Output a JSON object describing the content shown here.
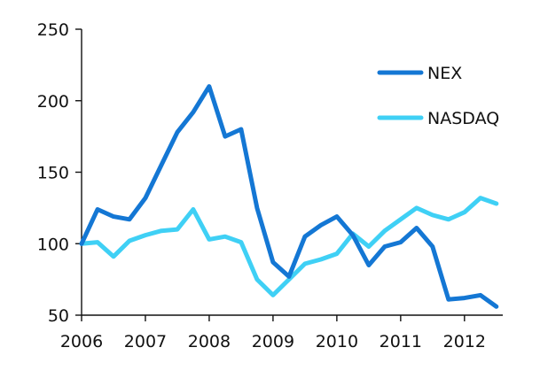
{
  "chart_data": {
    "type": "line",
    "title": "",
    "xlabel": "",
    "ylabel": "",
    "xlim": [
      2006,
      2012.6
    ],
    "ylim": [
      50,
      250
    ],
    "x_ticks": [
      2006,
      2007,
      2008,
      2009,
      2010,
      2011,
      2012
    ],
    "y_ticks": [
      50,
      100,
      150,
      200,
      250
    ],
    "grid": false,
    "legend_position": "top-right",
    "series": [
      {
        "name": "NEX",
        "color": "#1477d4",
        "x": [
          2006.0,
          2006.25,
          2006.5,
          2006.75,
          2007.0,
          2007.25,
          2007.5,
          2007.75,
          2008.0,
          2008.25,
          2008.5,
          2008.75,
          2009.0,
          2009.25,
          2009.5,
          2009.75,
          2010.0,
          2010.25,
          2010.5,
          2010.75,
          2011.0,
          2011.25,
          2011.5,
          2011.75,
          2012.0,
          2012.25,
          2012.5
        ],
        "y": [
          100,
          124,
          119,
          117,
          132,
          155,
          178,
          192,
          210,
          175,
          180,
          125,
          87,
          77,
          105,
          113,
          119,
          106,
          85,
          98,
          101,
          111,
          98,
          61,
          62,
          64,
          56
        ]
      },
      {
        "name": "NASDAQ",
        "color": "#3fd0f5",
        "x": [
          2006.0,
          2006.25,
          2006.5,
          2006.75,
          2007.0,
          2007.25,
          2007.5,
          2007.75,
          2008.0,
          2008.25,
          2008.5,
          2008.75,
          2009.0,
          2009.25,
          2009.5,
          2009.75,
          2010.0,
          2010.25,
          2010.5,
          2010.75,
          2011.0,
          2011.25,
          2011.5,
          2011.75,
          2012.0,
          2012.25,
          2012.5
        ],
        "y": [
          100,
          101,
          91,
          102,
          106,
          109,
          110,
          124,
          103,
          105,
          101,
          75,
          64,
          75,
          86,
          89,
          93,
          107,
          98,
          109,
          117,
          125,
          120,
          117,
          122,
          132,
          128
        ]
      }
    ]
  }
}
